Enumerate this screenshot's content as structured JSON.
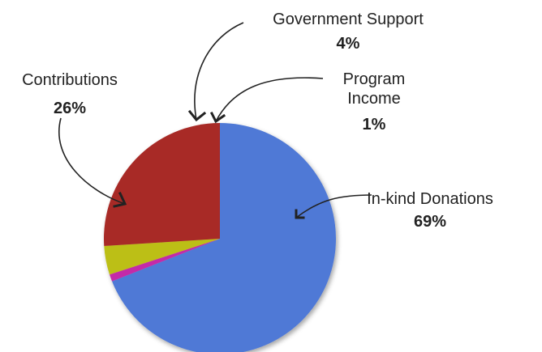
{
  "chart_data": {
    "type": "pie",
    "slices": [
      {
        "label_lines": [
          "In-kind Donations"
        ],
        "value": 69,
        "value_label": "69%",
        "color": "#5079d6"
      },
      {
        "label_lines": [
          "Program",
          "Income"
        ],
        "value": 1,
        "value_label": "1%",
        "color": "#c42aa8"
      },
      {
        "label_lines": [
          "Government Support"
        ],
        "value": 4,
        "value_label": "4%",
        "color": "#bcbf16"
      },
      {
        "label_lines": [
          "Contributions"
        ],
        "value": 26,
        "value_label": "26%",
        "color": "#a82a26"
      }
    ],
    "start_angle": "12 o'clock",
    "direction": "clockwise",
    "legend": "none"
  }
}
